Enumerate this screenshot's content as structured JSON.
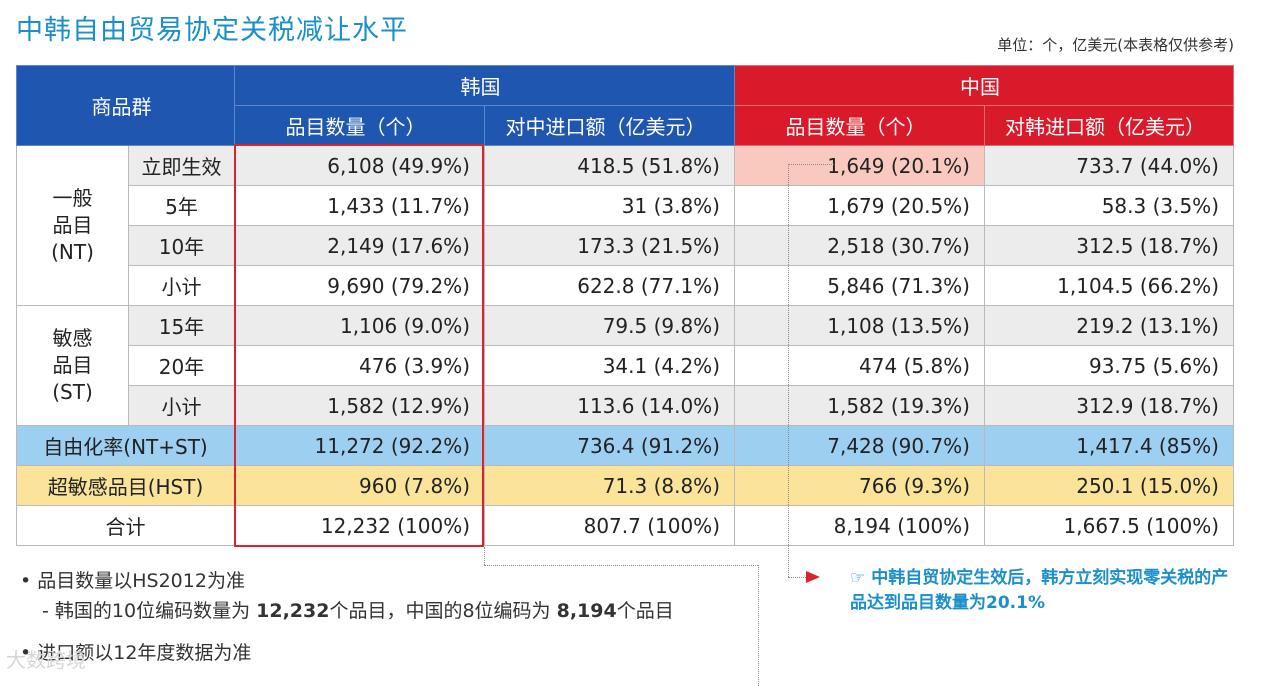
{
  "title": "中韩自由贸易协定关税减让水平",
  "unit_note": "单位：个，亿美元(本表格仅供参考)",
  "header": {
    "group_col": "商品群",
    "korea": "韩国",
    "china": "中国",
    "col_kr_items": "品目数量（个）",
    "col_kr_import": "对中进口额（亿美元）",
    "col_cn_items": "品目数量（个）",
    "col_cn_import": "对韩进口额（亿美元）"
  },
  "groups": {
    "nt": "一般\n品目\n(NT)",
    "st": "敏感\n品目\n(ST)"
  },
  "rows": {
    "r1": {
      "label": "立即生效",
      "kr_items": "6,108 (49.9%)",
      "kr_import": "418.5 (51.8%)",
      "cn_items": "1,649 (20.1%)",
      "cn_import": "733.7 (44.0%)"
    },
    "r2": {
      "label": "5年",
      "kr_items": "1,433 (11.7%)",
      "kr_import": "31 (3.8%)",
      "cn_items": "1,679 (20.5%)",
      "cn_import": "58.3 (3.5%)"
    },
    "r3": {
      "label": "10年",
      "kr_items": "2,149 (17.6%)",
      "kr_import": "173.3 (21.5%)",
      "cn_items": "2,518 (30.7%)",
      "cn_import": "312.5 (18.7%)"
    },
    "r4": {
      "label": "小计",
      "kr_items": "9,690 (79.2%)",
      "kr_import": "622.8 (77.1%)",
      "cn_items": "5,846 (71.3%)",
      "cn_import": "1,104.5 (66.2%)"
    },
    "r5": {
      "label": "15年",
      "kr_items": "1,106 (9.0%)",
      "kr_import": "79.5 (9.8%)",
      "cn_items": "1,108 (13.5%)",
      "cn_import": "219.2 (13.1%)"
    },
    "r6": {
      "label": "20年",
      "kr_items": "476 (3.9%)",
      "kr_import": "34.1 (4.2%)",
      "cn_items": "474 (5.8%)",
      "cn_import": "93.75 (5.6%)"
    },
    "r7": {
      "label": "小计",
      "kr_items": "1,582 (12.9%)",
      "kr_import": "113.6 (14.0%)",
      "cn_items": "1,582 (19.3%)",
      "cn_import": "312.9 (18.7%)"
    },
    "r8": {
      "label": "自由化率(NT+ST)",
      "kr_items": "11,272 (92.2%)",
      "kr_import": "736.4 (91.2%)",
      "cn_items": "7,428 (90.7%)",
      "cn_import": "1,417.4 (85%)"
    },
    "r9": {
      "label": "超敏感品目(HST)",
      "kr_items": "960 (7.8%)",
      "kr_import": "71.3 (8.8%)",
      "cn_items": "766 (9.3%)",
      "cn_import": "250.1 (15.0%)"
    },
    "r10": {
      "label": "合计",
      "kr_items": "12,232 (100%)",
      "kr_import": "807.7 (100%)",
      "cn_items": "8,194 (100%)",
      "cn_import": "1,667.5 (100%)"
    }
  },
  "notes": {
    "n1": "• 品目数量以HS2012为准",
    "n2_a": "- 韩国的10位编码数量为 ",
    "n2_b": "12,232",
    "n2_c": "个品目，中国的8位编码为 ",
    "n2_d": "8,194",
    "n2_e": "个品目",
    "n3": "• 进口额以12年度数据为准"
  },
  "callout": {
    "pen": "☞",
    "text": "中韩自贸协定生效后，韩方立刻实现零关税的产品达到品目数量为20.1%"
  },
  "watermark": "大数跨境",
  "colors": {
    "korea_blue": "#1f56b0",
    "china_red": "#d91a2a",
    "accent_cyan": "#1a8fc9"
  }
}
